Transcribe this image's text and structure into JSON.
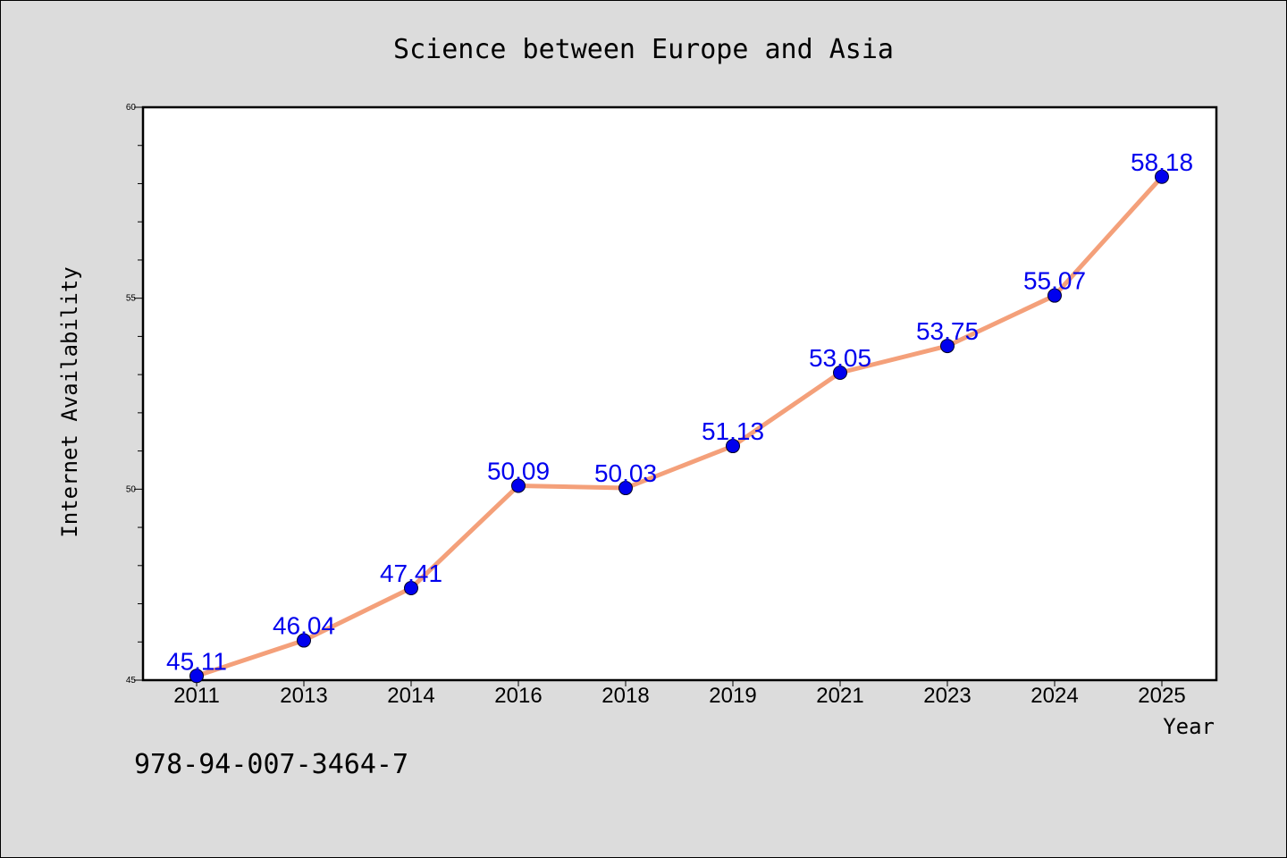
{
  "chart_data": {
    "type": "line",
    "title": "Science between Europe and Asia",
    "xlabel": "Year",
    "ylabel": "Internet Availability",
    "categories": [
      "2011",
      "2013",
      "2014",
      "2016",
      "2018",
      "2019",
      "2021",
      "2023",
      "2024",
      "2025"
    ],
    "series": [
      {
        "values": [
          45.11,
          46.04,
          47.41,
          50.09,
          50.03,
          51.13,
          53.05,
          53.75,
          55.07,
          58.18
        ],
        "labels": [
          "45.11",
          "46.04",
          "47.41",
          "50.09",
          "50.03",
          "51.13",
          "53.05",
          "53.75",
          "55.07",
          "58.18"
        ],
        "line_color": "#f4a07a",
        "marker_color": "#0000ee",
        "label_color": "#0000ee"
      }
    ],
    "ylim": [
      45,
      60
    ],
    "yticks": [
      "45",
      "50",
      "55",
      "60"
    ],
    "grid": false,
    "legend": "none"
  },
  "annotation": "978-94-007-3464-7",
  "colors": {
    "background": "#dcdcdc",
    "plot_area": "#ffffff",
    "axis": "#000000"
  }
}
